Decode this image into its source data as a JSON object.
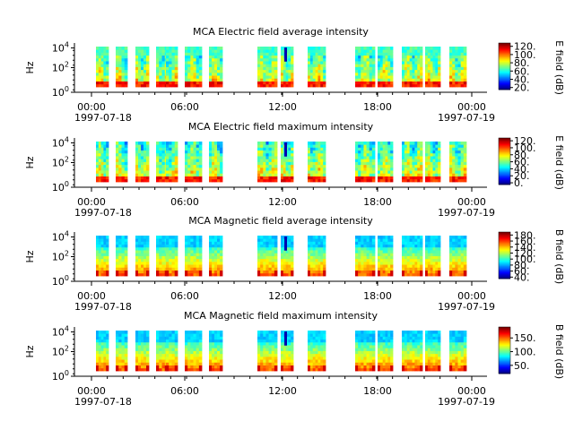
{
  "chart_data": [
    {
      "type": "heatmap",
      "title": "MCA  Electric field average intensity",
      "ylabel": "Hz",
      "yticks": [
        {
          "base": "10",
          "exp": "0"
        },
        {
          "base": "10",
          "exp": "2"
        },
        {
          "base": "10",
          "exp": "4"
        }
      ],
      "xticks": [
        "00:00",
        "06:00",
        "12:00",
        "18:00",
        "00:00"
      ],
      "xdates": [
        "1997-07-18",
        "1997-07-19"
      ],
      "colorbar": {
        "label": "E field (dB)",
        "ticks": [
          "20.",
          "40.",
          "60.",
          "80.",
          "100.",
          "120."
        ],
        "range": [
          15,
          128
        ]
      }
    },
    {
      "type": "heatmap",
      "title": "MCA  Electric field maximum intensity",
      "ylabel": "Hz",
      "yticks": [
        {
          "base": "10",
          "exp": "0"
        },
        {
          "base": "10",
          "exp": "2"
        },
        {
          "base": "10",
          "exp": "4"
        }
      ],
      "xticks": [
        "00:00",
        "06:00",
        "12:00",
        "18:00",
        "00:00"
      ],
      "xdates": [
        "1997-07-18",
        "1997-07-19"
      ],
      "colorbar": {
        "label": "E field (dB)",
        "ticks": [
          "0.",
          "20.",
          "40.",
          "60.",
          "80.",
          "100.",
          "120."
        ],
        "range": [
          -5,
          128
        ]
      }
    },
    {
      "type": "heatmap",
      "title": "MCA  Magnetic field average intensity",
      "ylabel": "Hz",
      "yticks": [
        {
          "base": "10",
          "exp": "0"
        },
        {
          "base": "10",
          "exp": "2"
        },
        {
          "base": "10",
          "exp": "4"
        }
      ],
      "xticks": [
        "00:00",
        "06:00",
        "12:00",
        "18:00",
        "00:00"
      ],
      "xdates": [
        "1997-07-18",
        "1997-07-19"
      ],
      "colorbar": {
        "label": "B field (dB)",
        "ticks": [
          "40.",
          "60.",
          "80.",
          "100.",
          "120.",
          "140.",
          "160.",
          "180."
        ],
        "range": [
          35,
          190
        ]
      }
    },
    {
      "type": "heatmap",
      "title": "MCA  Magnetic field maximum intensity",
      "ylabel": "Hz",
      "yticks": [
        {
          "base": "10",
          "exp": "0"
        },
        {
          "base": "10",
          "exp": "2"
        },
        {
          "base": "10",
          "exp": "4"
        }
      ],
      "xticks": [
        "00:00",
        "06:00",
        "12:00",
        "18:00",
        "00:00"
      ],
      "xdates": [
        "1997-07-18",
        "1997-07-19"
      ],
      "colorbar": {
        "label": "B field (dB)",
        "ticks": [
          "50.",
          "100.",
          "150."
        ],
        "range": [
          20,
          190
        ]
      }
    }
  ]
}
